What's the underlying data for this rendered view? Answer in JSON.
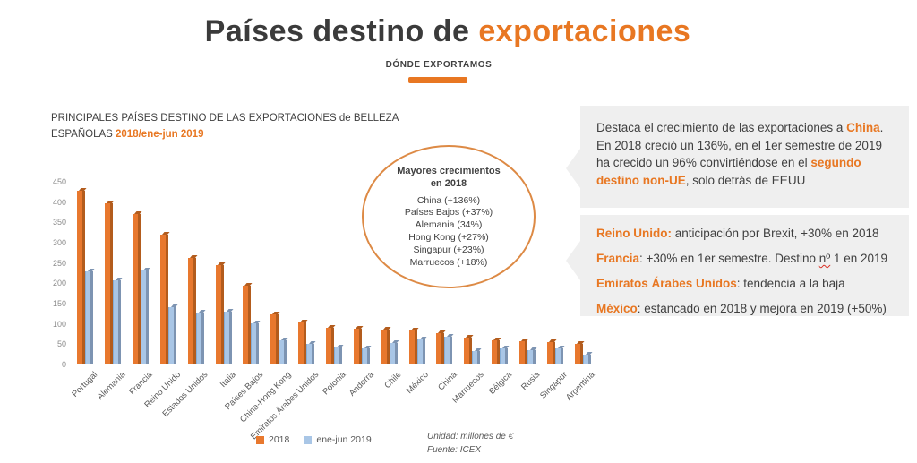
{
  "header": {
    "title_main": "Países destino de ",
    "title_accent": "exportaciones",
    "subtitle": "DÓNDE EXPORTAMOS"
  },
  "chart_heading": {
    "line1": "PRINCIPALES PAÍSES DESTINO DE LAS EXPORTACIONES de BELLEZA",
    "line2_prefix": "ESPAÑOLAS ",
    "line2_accent": "2018/ene-jun 2019"
  },
  "chart_data": {
    "type": "bar",
    "categories": [
      "Portugal",
      "Alemania",
      "Francia",
      "Reino Unido",
      "Estados Unidos",
      "Italia",
      "Países Bajos",
      "China-Hong Kong",
      "Emiratos Árabes Unidos",
      "Polonia",
      "Andorra",
      "Chile",
      "México",
      "China",
      "Marruecos",
      "Bélgica",
      "Rusia",
      "Singapur",
      "Argentina"
    ],
    "series": [
      {
        "name": "2018",
        "color": "#e8782e",
        "color_dark": "#b35c1d",
        "edge": "#b35c1d",
        "values": [
          425,
          395,
          368,
          318,
          260,
          242,
          193,
          122,
          102,
          88,
          86,
          83,
          82,
          74,
          65,
          57,
          55,
          52,
          48
        ]
      },
      {
        "name": "ene-jun 2019",
        "color": "#a9c6e6",
        "color_dark": "#7d94b2",
        "edge": "#86aed6",
        "values": [
          228,
          205,
          230,
          140,
          126,
          128,
          100,
          58,
          48,
          40,
          38,
          50,
          60,
          67,
          30,
          38,
          34,
          38,
          22
        ]
      }
    ],
    "ylim": [
      0,
      450
    ],
    "yticks": [
      0,
      50,
      100,
      150,
      200,
      250,
      300,
      350,
      400,
      450
    ],
    "grid": false,
    "legend_position": "bottom",
    "unit_note": "Unidad: millones de €",
    "source_note": "Fuente: ICEX"
  },
  "callout": {
    "title_line1": "Mayores crecimientos",
    "title_line2": "en 2018",
    "items": [
      "China (+136%)",
      "Países Bajos (+37%)",
      "Alemania (34%)",
      "Hong Kong (+27%)",
      "Singapur (+23%)",
      "Marruecos (+18%)"
    ]
  },
  "right_panel": {
    "box1": {
      "segments": [
        {
          "text": "Destaca el crecimiento de las exportaciones a "
        },
        {
          "text": "China",
          "highlight": true
        },
        {
          "text": ". En 2018 creció un 136%, en el 1er semestre de 2019 ha crecido un 96% convirtiéndose en el "
        },
        {
          "text": "segundo destino non-UE",
          "highlight": true
        },
        {
          "text": ", solo detrás de EEUU"
        }
      ]
    },
    "box2": {
      "lines": [
        {
          "segments": [
            {
              "text": "Reino Unido:",
              "highlight": true
            },
            {
              "text": " anticipación por Brexit, +30% en 2018"
            }
          ]
        },
        {
          "segments": [
            {
              "text": "Francia",
              "highlight": true
            },
            {
              "text": ": +30% en 1er semestre. Destino "
            },
            {
              "text": "nº",
              "squiggle": true
            },
            {
              "text": " 1 en 2019"
            }
          ]
        },
        {
          "segments": [
            {
              "text": "Emiratos Árabes Unidos",
              "highlight": true
            },
            {
              "text": ": tendencia a la baja"
            }
          ]
        },
        {
          "segments": [
            {
              "text": "México",
              "highlight": true
            },
            {
              "text": ": estancado en 2018 y mejora en 2019 (+50%)"
            }
          ]
        }
      ]
    }
  },
  "colors": {
    "accent_orange": "#e87722",
    "title_dark": "#3b3b3b",
    "box_bg": "#efefef",
    "axis_label": "#8c8c8c",
    "ellipse_border": "#dd8a45"
  }
}
